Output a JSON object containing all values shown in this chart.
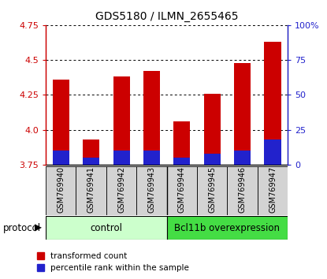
{
  "title": "GDS5180 / ILMN_2655465",
  "samples": [
    "GSM769940",
    "GSM769941",
    "GSM769942",
    "GSM769943",
    "GSM769944",
    "GSM769945",
    "GSM769946",
    "GSM769947"
  ],
  "red_values": [
    4.36,
    3.93,
    4.38,
    4.42,
    4.06,
    4.26,
    4.48,
    4.63
  ],
  "blue_values_pct": [
    10,
    5,
    10,
    10,
    5,
    8,
    10,
    18
  ],
  "ylim_left": [
    3.75,
    4.75
  ],
  "ylim_right": [
    0,
    100
  ],
  "yticks_left": [
    3.75,
    4.0,
    4.25,
    4.5,
    4.75
  ],
  "yticks_right": [
    0,
    25,
    50,
    75,
    100
  ],
  "ytick_labels_right": [
    "0",
    "25",
    "50",
    "75",
    "100%"
  ],
  "bar_bottom": 3.75,
  "red_color": "#cc0000",
  "blue_color": "#2222cc",
  "control_color": "#ccffcc",
  "overexp_color": "#44dd44",
  "control_label": "control",
  "overexp_label": "Bcl11b overexpression",
  "protocol_label": "protocol",
  "legend_red": "transformed count",
  "legend_blue": "percentile rank within the sample",
  "bar_width": 0.55
}
